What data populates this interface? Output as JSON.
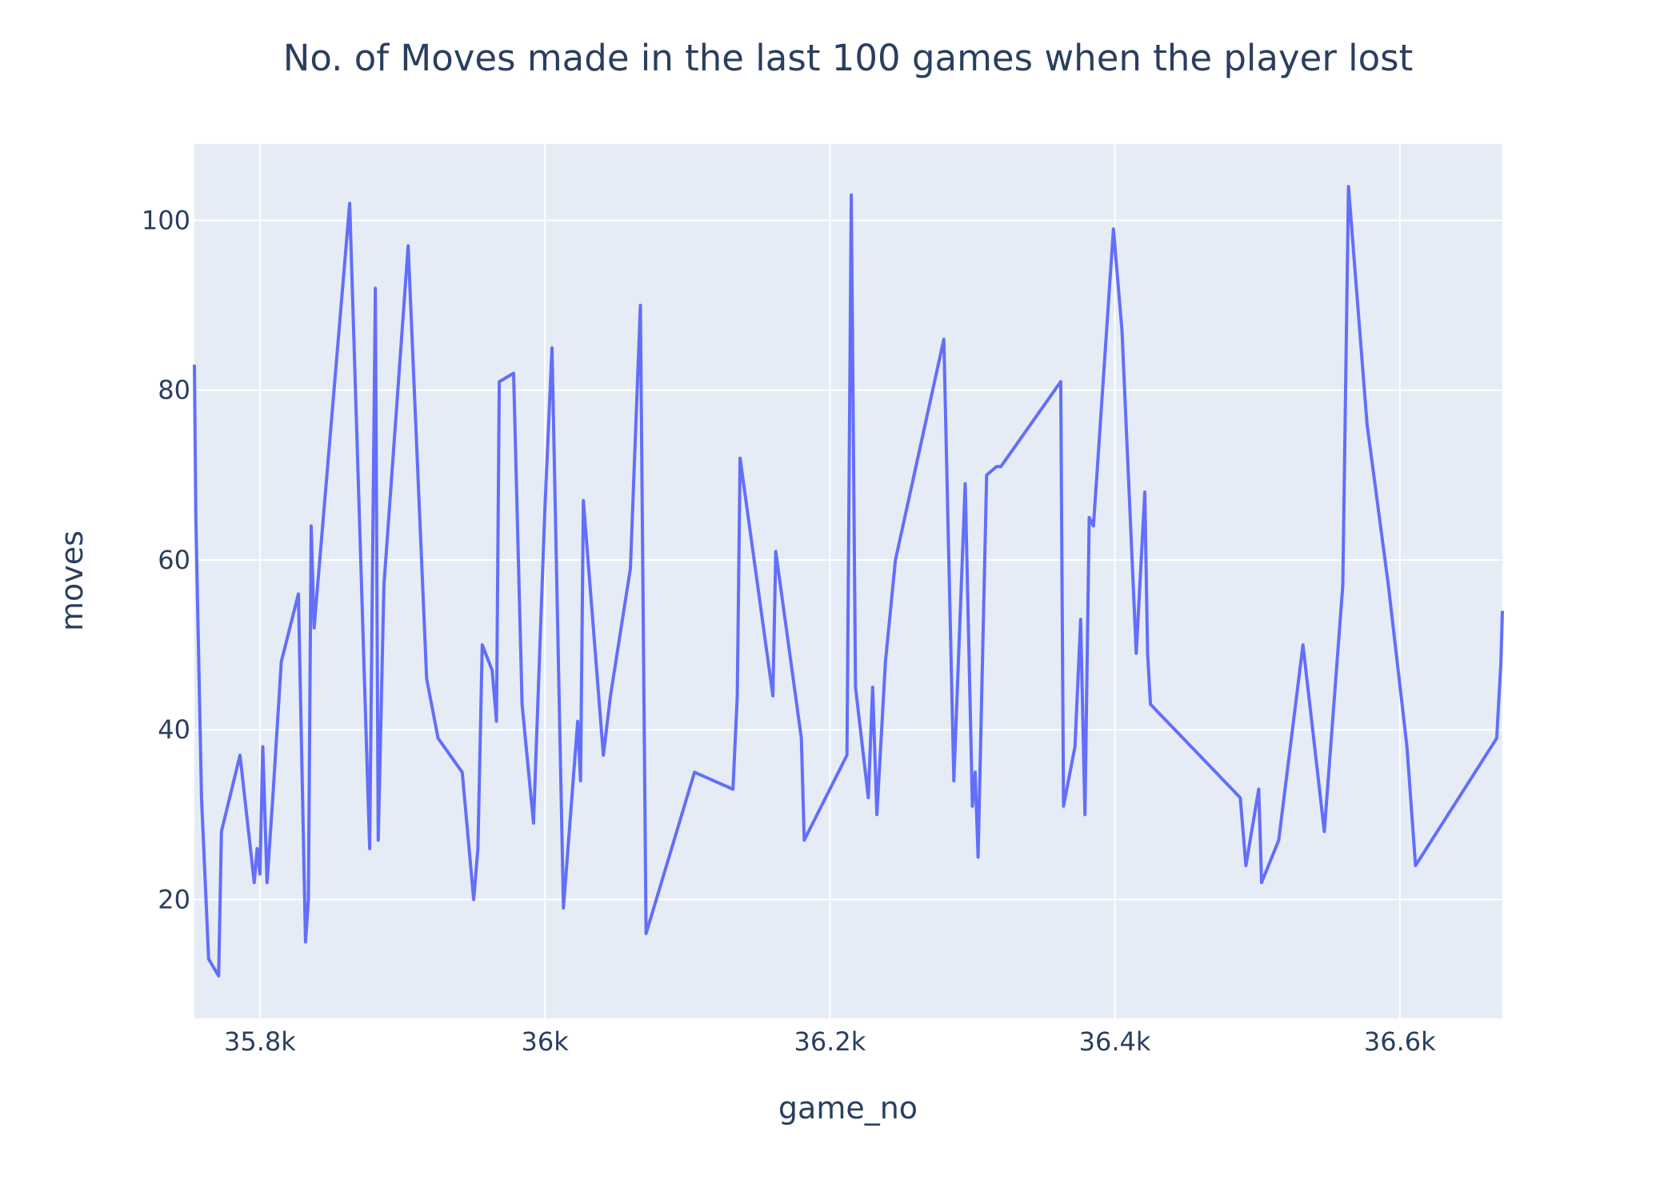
{
  "chart_data": {
    "type": "line",
    "title": "No. of Moves made in the last 100 games when the player lost",
    "xlabel": "game_no",
    "ylabel": "moves",
    "xlim": [
      35754,
      36672
    ],
    "ylim": [
      6,
      109
    ],
    "grid": true,
    "legend": "none",
    "x_ticks": [
      {
        "value": 35800,
        "label": "35.8k"
      },
      {
        "value": 36000,
        "label": "36k"
      },
      {
        "value": 36200,
        "label": "36.2k"
      },
      {
        "value": 36400,
        "label": "36.4k"
      },
      {
        "value": 36600,
        "label": "36.6k"
      }
    ],
    "y_ticks": [
      {
        "value": 20,
        "label": "20"
      },
      {
        "value": 40,
        "label": "40"
      },
      {
        "value": 60,
        "label": "60"
      },
      {
        "value": 80,
        "label": "80"
      },
      {
        "value": 100,
        "label": "100"
      }
    ],
    "colors": {
      "line": "#636efa",
      "plot_bg": "#e5ecf6",
      "grid": "#ffffff",
      "text": "#2a3f5f"
    },
    "series": [
      {
        "x": [
          35754,
          35755,
          35759,
          35764,
          35771,
          35773,
          35786,
          35796,
          35798,
          35800,
          35802,
          35805,
          35809,
          35815,
          35827,
          35832,
          35834,
          35836,
          35838,
          35863,
          35877,
          35881,
          35883,
          35887,
          35904,
          35917,
          35925,
          35942,
          35950,
          35953,
          35956,
          35963,
          35966,
          35968,
          35978,
          35984,
          35992,
          36000,
          36005,
          36013,
          36023,
          36025,
          36027,
          36041,
          36046,
          36060,
          36067,
          36071,
          36105,
          36132,
          36135,
          36137,
          36160,
          36162,
          36180,
          36182,
          36212,
          36215,
          36218,
          36227,
          36230,
          36233,
          36239,
          36246,
          36280,
          36287,
          36295,
          36300,
          36302,
          36304,
          36310,
          36317,
          36320,
          36362,
          36364,
          36372,
          36376,
          36379,
          36382,
          36385,
          36399,
          36405,
          36415,
          36421,
          36423,
          36425,
          36488,
          36492,
          36501,
          36503,
          36515,
          36532,
          36547,
          36560,
          36564,
          36577,
          36592,
          36605,
          36611,
          36668,
          36671,
          36672
        ],
        "y": [
          83,
          65,
          32,
          13,
          11,
          28,
          37,
          22,
          26,
          23,
          38,
          22,
          32,
          48,
          56,
          15,
          20,
          64,
          52,
          102,
          26,
          92,
          27,
          57,
          97,
          46,
          39,
          35,
          20,
          26,
          50,
          47,
          41,
          81,
          82,
          43,
          29,
          66,
          85,
          19,
          41,
          34,
          67,
          37,
          44,
          59,
          90,
          16,
          35,
          33,
          44,
          72,
          44,
          61,
          39,
          27,
          37,
          103,
          45,
          32,
          45,
          30,
          48,
          60,
          86,
          34,
          69,
          31,
          35,
          25,
          70,
          71,
          71,
          81,
          31,
          38,
          53,
          30,
          65,
          64,
          99,
          87,
          49,
          68,
          49,
          43,
          32,
          24,
          33,
          22,
          27,
          50,
          28,
          57,
          104,
          76,
          57,
          38,
          24,
          39,
          48,
          54
        ]
      }
    ]
  }
}
